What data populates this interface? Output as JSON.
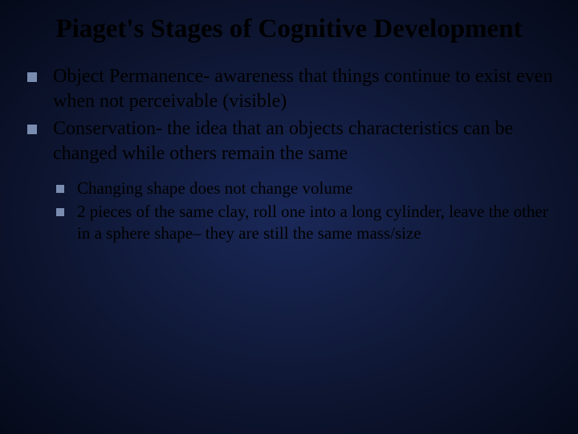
{
  "slide": {
    "title": "Piaget's Stages of Cognitive Development",
    "background_gradient": {
      "center": "#1a2858",
      "mid": "#0d1530",
      "edge": "#050a1a"
    },
    "title_color": "#000000",
    "title_fontsize": 33,
    "body_color": "#000000",
    "body_fontsize": 24,
    "sub_body_fontsize": 21,
    "bullet_color": "#7a8db0",
    "bullet_size": 12,
    "sub_bullet_size": 10,
    "bullets": [
      {
        "text": "Object Permanence- awareness that things continue to exist even when not perceivable (visible)"
      },
      {
        "text": "Conservation- the idea that an objects characteristics can be changed while others remain the same"
      }
    ],
    "sub_bullets": [
      {
        "text": "Changing shape does not change volume"
      },
      {
        "text": "2 pieces of the same clay, roll one into a long cylinder, leave the other in a sphere shape– they are still the same mass/size"
      }
    ]
  }
}
